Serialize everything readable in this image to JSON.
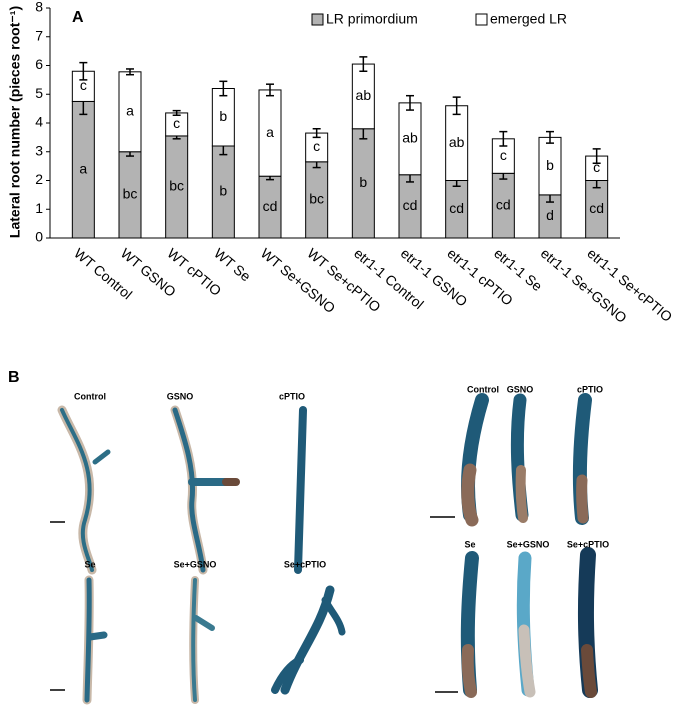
{
  "chart_data": {
    "type": "bar",
    "stacked": true,
    "panel_label": "A",
    "y_label": "Lateral root number (pieces root⁻¹)",
    "categories": [
      "WT Control",
      "WT GSNO",
      "WT cPTIO",
      "WT Se",
      "WT Se+GSNO",
      "WT Se+cPTIO",
      "etr1-1 Control",
      "etr1-1 GSNO",
      "etr1-1 cPTIO",
      "etr1-1 Se",
      "etr1-1 Se+GSNO",
      "etr1-1 Se+cPTIO"
    ],
    "series": [
      {
        "name": "LR primordium",
        "color": "#b3b3b3",
        "values": [
          4.75,
          3.0,
          3.55,
          3.2,
          2.15,
          2.65,
          3.8,
          2.2,
          2.0,
          2.25,
          1.5,
          2.0
        ],
        "errors": [
          0.45,
          0.15,
          0.1,
          0.3,
          0.12,
          0.2,
          0.35,
          0.25,
          0.2,
          0.2,
          0.25,
          0.25
        ],
        "letters": [
          "a",
          "bc",
          "bc",
          "b",
          "cd",
          "bc",
          "b",
          "cd",
          "cd",
          "cd",
          "d",
          "cd"
        ]
      },
      {
        "name": "emerged LR",
        "color": "#ffffff",
        "values": [
          1.05,
          2.78,
          0.8,
          2.0,
          3.0,
          1.0,
          2.25,
          2.5,
          2.6,
          1.2,
          2.0,
          0.85
        ],
        "errors": [
          0.3,
          0.1,
          0.08,
          0.25,
          0.2,
          0.15,
          0.25,
          0.25,
          0.3,
          0.25,
          0.2,
          0.25
        ],
        "letters": [
          "c",
          "a",
          "c",
          "b",
          "a",
          "c",
          "ab",
          "ab",
          "ab",
          "c",
          "b",
          "c"
        ]
      }
    ],
    "ylim": [
      0,
      8
    ],
    "yticks": [
      0,
      1,
      2,
      3,
      4,
      5,
      6,
      7,
      8
    ]
  },
  "panel_b": {
    "label": "B",
    "left": {
      "captions": [
        "Control",
        "GSNO",
        "cPTIO",
        "Se",
        "Se+GSNO",
        "Se+cPTIO"
      ]
    },
    "right": {
      "captions": [
        "Control",
        "GSNO",
        "cPTIO",
        "Se",
        "Se+GSNO",
        "Se+cPTIO"
      ]
    }
  }
}
